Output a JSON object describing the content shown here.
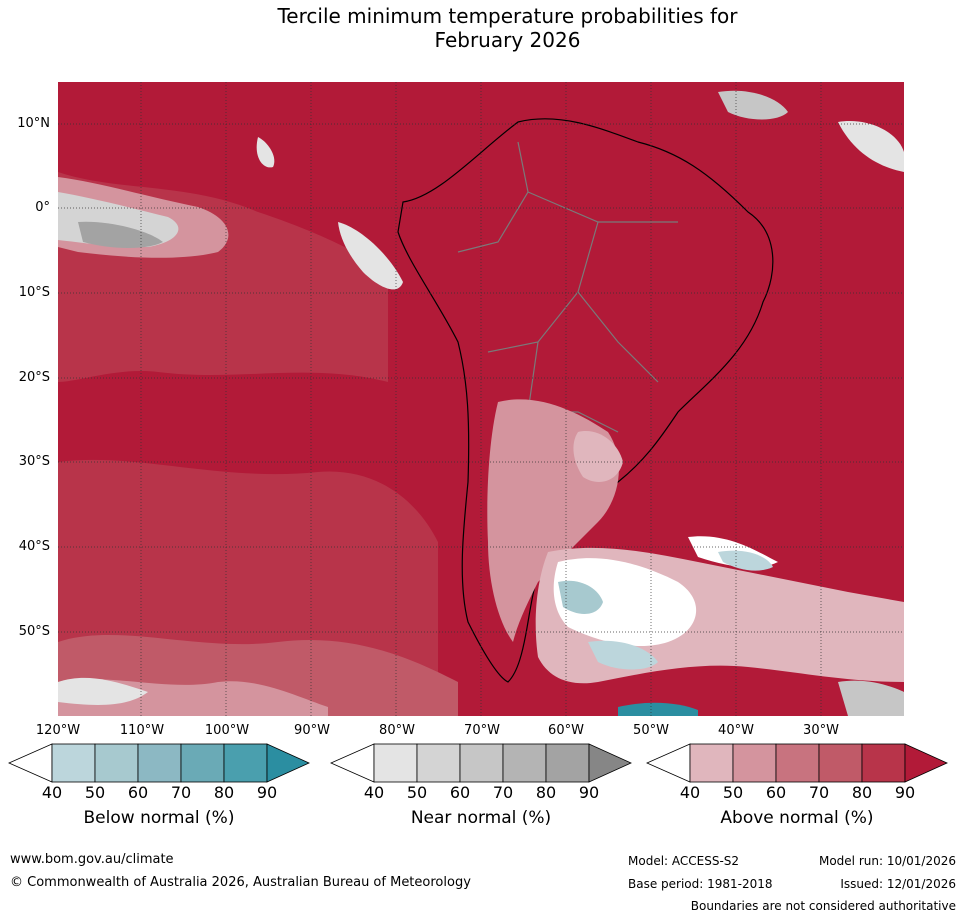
{
  "title_line1": "Tercile minimum temperature probabilities for",
  "title_line2": "February 2026",
  "latitude_labels": [
    "10°N",
    "0°",
    "10°S",
    "20°S",
    "30°S",
    "40°S",
    "50°S"
  ],
  "longitude_labels": [
    "120°W",
    "110°W",
    "100°W",
    "90°W",
    "80°W",
    "70°W",
    "60°W",
    "50°W",
    "40°W",
    "30°W"
  ],
  "colorbars": [
    {
      "title": "Below normal (%)",
      "ticks": [
        "40",
        "50",
        "60",
        "70",
        "80",
        "90"
      ],
      "colors": [
        "#ffffff",
        "#bcd6dc",
        "#a7c9cf",
        "#8cb8c3",
        "#6aaab6",
        "#4a9fae",
        "#2b8ea1"
      ]
    },
    {
      "title": "Near normal (%)",
      "ticks": [
        "40",
        "50",
        "60",
        "70",
        "80",
        "90"
      ],
      "colors": [
        "#ffffff",
        "#e4e4e4",
        "#d4d4d4",
        "#c6c6c6",
        "#b4b4b4",
        "#a3a3a3",
        "#868686"
      ]
    },
    {
      "title": "Above normal (%)",
      "ticks": [
        "40",
        "50",
        "60",
        "70",
        "80",
        "90"
      ],
      "colors": [
        "#ffffff",
        "#e0b6bd",
        "#d4949e",
        "#c8737f",
        "#c05a68",
        "#b8344a",
        "#b21a38"
      ]
    }
  ],
  "footer": {
    "website": "www.bom.gov.au/climate",
    "copyright": "© Commonwealth of Australia 2026, Australian Bureau of Meteorology",
    "model": "Model: ACCESS-S2",
    "base_period": "Base period: 1981-2018",
    "model_run": "Model run: 10/01/2026",
    "issued": "Issued: 12/01/2026",
    "disclaimer": "Boundaries are not considered authoritative"
  }
}
